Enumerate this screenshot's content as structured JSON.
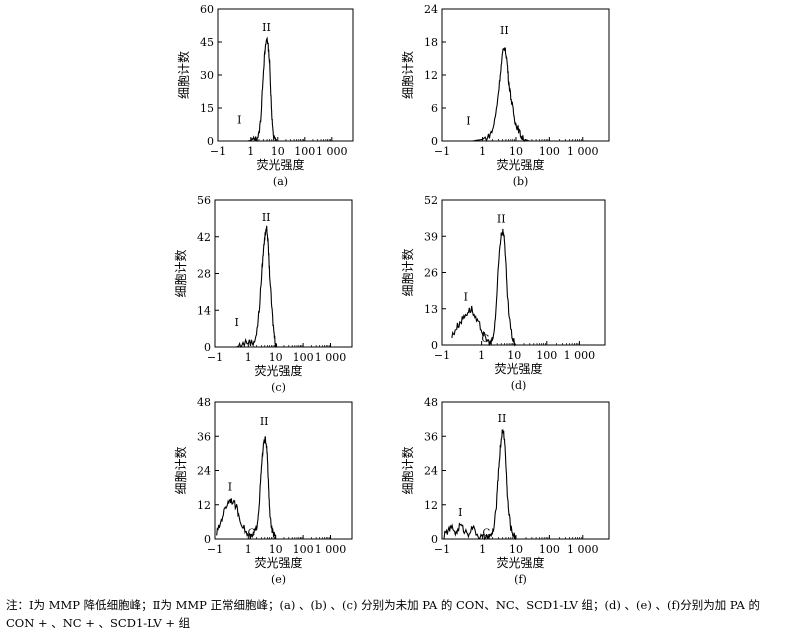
{
  "figure_note": "注：Ⅰ为 MMP 降低细胞峰；Ⅱ为 MMP 正常细胞峰；(a) 、(b) 、(c) 分别为未加 PA 的 CON、NC、SCD1-LV 组；(d) 、(e) 、(f)分别为加 PA 的 CON + 、NC + 、SCD1-LV + 组",
  "chart_data": [
    {
      "type": "area",
      "panel_label": "(a)",
      "xlabel": "荧光强度",
      "ylabel": "细胞计数",
      "x_ticks": [
        "−1",
        "1",
        "10",
        "100",
        "1 000"
      ],
      "x_scale": "log-like",
      "ylim": [
        0,
        60
      ],
      "y_ticks": [
        0,
        15,
        30,
        45,
        60
      ],
      "peak_labels": [
        {
          "text": "I",
          "x": 0.3,
          "y": 8
        },
        {
          "text": "II",
          "x": 3.8,
          "y": 50
        }
      ],
      "gate_marks": [],
      "x": [
        -1,
        0.3,
        0.8,
        1.2,
        1.6,
        2,
        2.4,
        2.8,
        3.2,
        3.6,
        4,
        4.5,
        5,
        5.5,
        6,
        6.5,
        7,
        8,
        9,
        10
      ],
      "y": [
        0,
        0,
        0,
        0.5,
        1,
        3,
        12,
        28,
        38,
        44,
        47,
        42,
        35,
        22,
        12,
        5,
        2,
        0.5,
        0,
        0
      ]
    },
    {
      "type": "area",
      "panel_label": "(b)",
      "xlabel": "荧光强度",
      "ylabel": "细胞计数",
      "x_ticks": [
        "−1",
        "1",
        "10",
        "100",
        "1 000"
      ],
      "x_scale": "log-like",
      "ylim": [
        0,
        24
      ],
      "y_ticks": [
        0,
        6,
        12,
        18,
        24
      ],
      "peak_labels": [
        {
          "text": "I",
          "x": 0.3,
          "y": 3
        },
        {
          "text": "II",
          "x": 4.5,
          "y": 19.5
        }
      ],
      "gate_marks": [],
      "x": [
        -1,
        0.5,
        1,
        1.5,
        2,
        2.5,
        3,
        3.5,
        4,
        4.5,
        5,
        5.5,
        6,
        7,
        8,
        9,
        10,
        12,
        14,
        16,
        20,
        25
      ],
      "y": [
        0,
        0,
        0.3,
        0.8,
        2,
        5,
        9,
        13,
        16,
        17,
        16,
        14,
        11,
        8,
        6,
        4,
        3,
        2,
        1,
        0.5,
        0.2,
        0
      ]
    },
    {
      "type": "area",
      "panel_label": "(c)",
      "xlabel": "荧光强度",
      "ylabel": "细胞计数",
      "x_ticks": [
        "−1",
        "1",
        "10",
        "100",
        "1 000"
      ],
      "x_scale": "log-like",
      "ylim": [
        0,
        56
      ],
      "y_ticks": [
        0,
        14,
        28,
        42,
        56
      ],
      "peak_labels": [
        {
          "text": "I",
          "x": 0.3,
          "y": 8
        },
        {
          "text": "II",
          "x": 4.5,
          "y": 48
        }
      ],
      "gate_marks": [],
      "x": [
        -1,
        0.3,
        0.6,
        1,
        1.5,
        2,
        2.5,
        3,
        3.5,
        4,
        4.5,
        5,
        5.5,
        6,
        7,
        8,
        9,
        10,
        11
      ],
      "y": [
        0,
        0,
        1,
        2,
        1.5,
        5,
        14,
        26,
        36,
        42,
        46,
        43,
        36,
        28,
        17,
        9,
        4,
        1,
        0
      ]
    },
    {
      "type": "area",
      "panel_label": "(d)",
      "xlabel": "荧光强度",
      "ylabel": "细胞计数",
      "x_ticks": [
        "−1",
        "1",
        "10",
        "100",
        "1 000"
      ],
      "x_scale": "log-like",
      "ylim": [
        0,
        52
      ],
      "y_ticks": [
        0,
        13,
        26,
        39,
        52
      ],
      "peak_labels": [
        {
          "text": "I",
          "x": 0.2,
          "y": 16
        },
        {
          "text": "II",
          "x": 4,
          "y": 44
        }
      ],
      "gate_marks": [
        "C"
      ],
      "x": [
        -0.5,
        -0.3,
        -0.1,
        0.1,
        0.3,
        0.5,
        0.7,
        0.9,
        1.1,
        1.4,
        1.8,
        2,
        2.4,
        2.8,
        3.2,
        3.6,
        4,
        4.5,
        5,
        5.5,
        6,
        7,
        8,
        9,
        10,
        11
      ],
      "y": [
        3,
        6,
        8,
        10,
        12,
        13,
        9,
        7,
        4,
        2,
        0.5,
        1,
        4,
        14,
        26,
        35,
        40,
        41,
        38,
        30,
        20,
        10,
        5,
        2,
        1,
        0
      ]
    },
    {
      "type": "area",
      "panel_label": "(e)",
      "xlabel": "荧光强度",
      "ylabel": "细胞计数",
      "x_ticks": [
        "−1",
        "1",
        "10",
        "100",
        "1 000"
      ],
      "x_scale": "log-like",
      "ylim": [
        0,
        48
      ],
      "y_ticks": [
        0,
        12,
        24,
        36,
        48
      ],
      "peak_labels": [
        {
          "text": "I",
          "x": -0.1,
          "y": 17
        },
        {
          "text": "II",
          "x": 3.8,
          "y": 40
        }
      ],
      "gate_marks": [
        "C"
      ],
      "x": [
        -0.9,
        -0.7,
        -0.5,
        -0.3,
        -0.1,
        0.1,
        0.3,
        0.5,
        0.8,
        1,
        1.3,
        1.6,
        2,
        2.4,
        2.8,
        3.2,
        3.6,
        4,
        4.5,
        5,
        5.5,
        6,
        7,
        8,
        9,
        10
      ],
      "y": [
        2,
        5,
        9,
        12,
        14,
        13,
        11,
        7,
        3,
        1,
        0.5,
        2,
        4,
        10,
        20,
        28,
        33,
        35,
        34,
        28,
        18,
        10,
        4,
        2,
        1,
        0
      ]
    },
    {
      "type": "area",
      "panel_label": "(f)",
      "xlabel": "荧光强度",
      "ylabel": "细胞计数",
      "x_ticks": [
        "−1",
        "1",
        "10",
        "100",
        "1 000"
      ],
      "x_scale": "log-like",
      "ylim": [
        0,
        48
      ],
      "y_ticks": [
        0,
        12,
        24,
        36,
        48
      ],
      "peak_labels": [
        {
          "text": "I",
          "x": -0.1,
          "y": 8
        },
        {
          "text": "II",
          "x": 3.8,
          "y": 41
        }
      ],
      "gate_marks": [
        "C"
      ],
      "x": [
        -0.9,
        -0.7,
        -0.5,
        -0.3,
        -0.1,
        0.1,
        0.3,
        0.5,
        0.8,
        1,
        1.4,
        1.8,
        2.2,
        2.6,
        3,
        3.4,
        3.8,
        4.2,
        4.6,
        5,
        5.5,
        6,
        7,
        8,
        9,
        10
      ],
      "y": [
        1,
        3,
        4,
        2,
        5,
        3,
        2,
        4,
        1,
        0.5,
        0.5,
        1,
        4,
        12,
        24,
        32,
        37,
        38,
        34,
        26,
        16,
        10,
        4,
        2,
        1,
        0
      ]
    }
  ]
}
